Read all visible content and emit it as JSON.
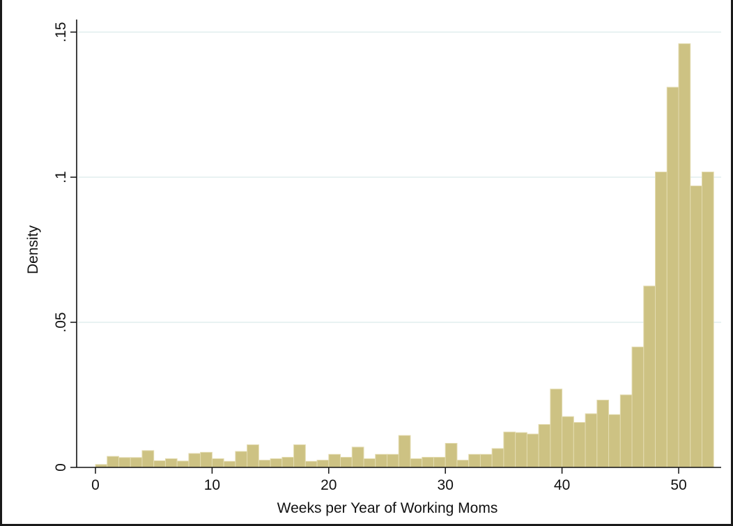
{
  "chart_data": {
    "type": "bar",
    "title": "",
    "xlabel": "Weeks per Year of Working Moms",
    "ylabel": "Density",
    "xlim": [
      -2,
      53
    ],
    "ylim": [
      0,
      0.15
    ],
    "x_ticks": [
      0,
      10,
      20,
      30,
      40,
      50
    ],
    "x_tick_labels": [
      "0",
      "10",
      "20",
      "30",
      "40",
      "50"
    ],
    "y_ticks": [
      0,
      0.05,
      0.1,
      0.15
    ],
    "y_tick_labels": [
      "0",
      ".05",
      ".1",
      ".15"
    ],
    "grid": true,
    "bar_color": "#cdc283",
    "bar_edge_color": "#e3dbb0",
    "grid_color": "#dbe9e9",
    "bin_width": 1,
    "bin_starts": [
      0,
      1,
      2,
      3,
      4,
      5,
      6,
      7,
      8,
      9,
      10,
      11,
      12,
      13,
      14,
      15,
      16,
      17,
      18,
      19,
      20,
      21,
      22,
      23,
      24,
      25,
      26,
      27,
      28,
      29,
      30,
      31,
      32,
      33,
      34,
      35,
      36,
      37,
      38,
      39,
      40,
      41,
      42,
      43,
      44,
      45,
      46,
      47,
      48,
      49,
      50,
      51,
      52
    ],
    "values": [
      0.001,
      0.0038,
      0.0034,
      0.0034,
      0.0058,
      0.0023,
      0.003,
      0.0022,
      0.0048,
      0.0052,
      0.003,
      0.0021,
      0.0055,
      0.0078,
      0.0025,
      0.003,
      0.0035,
      0.0078,
      0.0021,
      0.0025,
      0.0045,
      0.0035,
      0.007,
      0.003,
      0.0045,
      0.0045,
      0.011,
      0.003,
      0.0035,
      0.0035,
      0.0083,
      0.0025,
      0.0045,
      0.0045,
      0.0065,
      0.0122,
      0.012,
      0.0115,
      0.0148,
      0.027,
      0.0175,
      0.0155,
      0.0185,
      0.0232,
      0.0182,
      0.025,
      0.0415,
      0.0625,
      0.1018,
      0.131,
      0.146,
      0.097,
      0.1018
    ]
  }
}
